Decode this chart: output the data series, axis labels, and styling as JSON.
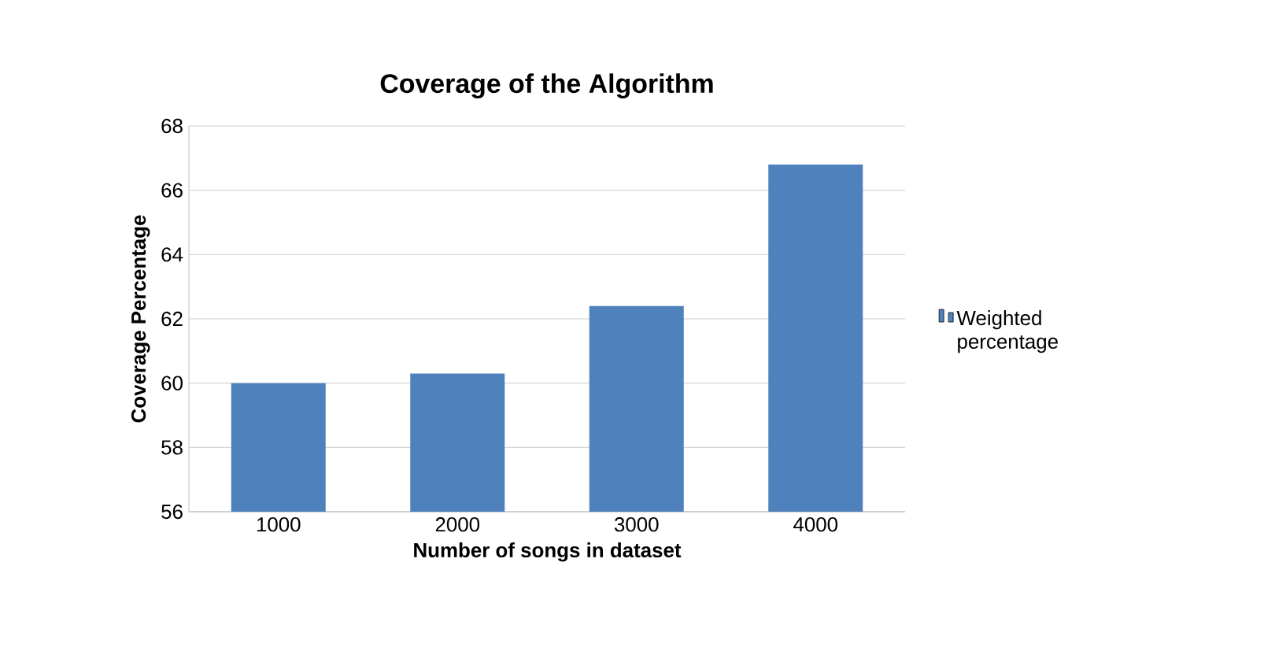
{
  "chart_data": {
    "type": "bar",
    "title": "Coverage of the Algorithm",
    "xlabel": "Number of songs in dataset",
    "ylabel": "Coverage Percentage",
    "categories": [
      "1000",
      "2000",
      "3000",
      "4000"
    ],
    "series": [
      {
        "name": "Weighted percentage",
        "color": "#4f81bd",
        "values": [
          60.0,
          60.3,
          62.4,
          66.8
        ]
      }
    ],
    "ylim": [
      56,
      68
    ],
    "yticks": [
      56,
      58,
      60,
      62,
      64,
      66,
      68
    ],
    "grid": "y",
    "legend": "right"
  }
}
